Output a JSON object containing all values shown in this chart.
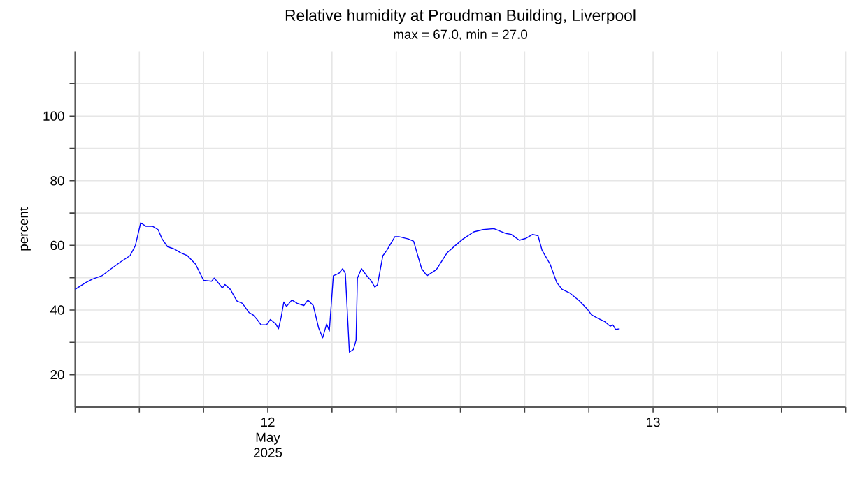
{
  "chart_data": {
    "type": "line",
    "title": "Relative humidity at Proudman Building, Liverpool",
    "subtitle": "max = 67.0, min = 27.0",
    "ylabel": "percent",
    "x": [
      "2025-05-12T00:00",
      "2025-05-12T00:40",
      "2025-05-12T01:05",
      "2025-05-12T01:40",
      "2025-05-12T02:15",
      "2025-05-12T02:50",
      "2025-05-12T03:25",
      "2025-05-12T03:45",
      "2025-05-12T04:05",
      "2025-05-12T04:25",
      "2025-05-12T04:50",
      "2025-05-12T05:10",
      "2025-05-12T05:25",
      "2025-05-12T05:45",
      "2025-05-12T06:10",
      "2025-05-12T06:35",
      "2025-05-12T07:00",
      "2025-05-12T07:30",
      "2025-05-12T08:00",
      "2025-05-12T08:30",
      "2025-05-12T08:40",
      "2025-05-12T09:05",
      "2025-05-12T09:10",
      "2025-05-12T09:20",
      "2025-05-12T09:40",
      "2025-05-12T09:55",
      "2025-05-12T10:05",
      "2025-05-12T10:25",
      "2025-05-12T10:50",
      "2025-05-12T11:05",
      "2025-05-12T11:20",
      "2025-05-12T11:35",
      "2025-05-12T11:55",
      "2025-05-12T12:10",
      "2025-05-12T12:30",
      "2025-05-12T12:40",
      "2025-05-12T12:50",
      "2025-05-12T13:00",
      "2025-05-12T13:10",
      "2025-05-12T13:30",
      "2025-05-12T13:50",
      "2025-05-12T14:15",
      "2025-05-12T14:30",
      "2025-05-12T14:50",
      "2025-05-12T15:10",
      "2025-05-12T15:25",
      "2025-05-12T15:40",
      "2025-05-12T15:50",
      "2025-05-12T16:05",
      "2025-05-12T16:25",
      "2025-05-12T16:40",
      "2025-05-12T16:50",
      "2025-05-12T17:05",
      "2025-05-12T17:20",
      "2025-05-12T17:30",
      "2025-05-12T17:35",
      "2025-05-12T17:50",
      "2025-05-12T18:10",
      "2025-05-12T18:25",
      "2025-05-12T18:40",
      "2025-05-12T18:50",
      "2025-05-12T19:10",
      "2025-05-12T19:25",
      "2025-05-12T19:55",
      "2025-05-12T20:10",
      "2025-05-12T20:45",
      "2025-05-12T21:05",
      "2025-05-12T21:20",
      "2025-05-12T21:35",
      "2025-05-12T21:55",
      "2025-05-12T22:30",
      "2025-05-12T23:10",
      "2025-05-12T23:40",
      "2025-05-13T00:10",
      "2025-05-13T00:50",
      "2025-05-13T01:25",
      "2025-05-13T02:05",
      "2025-05-13T02:50",
      "2025-05-13T03:10",
      "2025-05-13T03:40",
      "2025-05-13T04:05",
      "2025-05-13T04:30",
      "2025-05-13T04:50",
      "2025-05-13T05:05",
      "2025-05-13T05:35",
      "2025-05-13T06:00",
      "2025-05-13T06:20",
      "2025-05-13T06:50",
      "2025-05-13T07:25",
      "2025-05-13T07:55",
      "2025-05-13T08:10",
      "2025-05-13T08:35",
      "2025-05-13T09:00",
      "2025-05-13T09:20",
      "2025-05-13T09:30",
      "2025-05-13T09:40",
      "2025-05-13T09:55"
    ],
    "series": [
      {
        "color": "#0000ff",
        "values": [
          46.4,
          48.5,
          49.6,
          50.6,
          52.8,
          54.9,
          56.8,
          59.9,
          67.0,
          65.9,
          65.9,
          64.9,
          62.0,
          59.6,
          58.9,
          57.7,
          56.8,
          54.2,
          49.2,
          48.9,
          49.9,
          47.4,
          46.8,
          47.9,
          46.4,
          44.2,
          42.8,
          42.1,
          39.2,
          38.5,
          37.1,
          35.4,
          35.4,
          37.1,
          35.7,
          34.2,
          37.8,
          42.5,
          41.1,
          43.1,
          42.1,
          41.4,
          43.1,
          41.4,
          34.5,
          31.4,
          35.7,
          33.5,
          50.6,
          51.3,
          52.8,
          51.3,
          27.0,
          27.8,
          30.7,
          49.9,
          52.8,
          50.6,
          49.2,
          47.1,
          47.8,
          56.8,
          58.5,
          62.7,
          62.7,
          62.0,
          61.3,
          57.0,
          52.8,
          50.6,
          52.5,
          57.7,
          59.9,
          62.0,
          64.2,
          64.9,
          65.2,
          63.7,
          63.4,
          61.6,
          62.2,
          63.4,
          63.0,
          58.5,
          54.2,
          48.5,
          46.4,
          45.2,
          42.8,
          40.2,
          38.5,
          37.4,
          36.4,
          35.0,
          35.4,
          34.0,
          34.2
        ]
      }
    ],
    "xlim": [
      "2025-05-12T00:00",
      "2025-05-14T00:00"
    ],
    "xticks": [
      {
        "value": "2025-05-12T00:00",
        "label": null
      },
      {
        "value": "2025-05-12T04:00",
        "label": null
      },
      {
        "value": "2025-05-12T08:00",
        "label": null
      },
      {
        "value": "2025-05-12T12:00",
        "label": "12 May 2025"
      },
      {
        "value": "2025-05-12T16:00",
        "label": null
      },
      {
        "value": "2025-05-12T20:00",
        "label": null
      },
      {
        "value": "2025-05-13T00:00",
        "label": null
      },
      {
        "value": "2025-05-13T04:00",
        "label": null
      },
      {
        "value": "2025-05-13T08:00",
        "label": null
      },
      {
        "value": "2025-05-13T12:00",
        "label": "13"
      },
      {
        "value": "2025-05-13T16:00",
        "label": null
      },
      {
        "value": "2025-05-13T20:00",
        "label": null
      },
      {
        "value": "2025-05-14T00:00",
        "label": null
      }
    ],
    "ylim": [
      10,
      120
    ],
    "yticks": [
      20,
      {
        "value": 30,
        "label": null
      },
      40,
      {
        "value": 50,
        "label": null
      },
      60,
      {
        "value": 70,
        "label": null
      },
      80,
      {
        "value": 90,
        "label": null
      },
      100,
      {
        "value": 110,
        "label": null
      }
    ],
    "grid": true,
    "marker": "none",
    "line_style": "solid"
  }
}
